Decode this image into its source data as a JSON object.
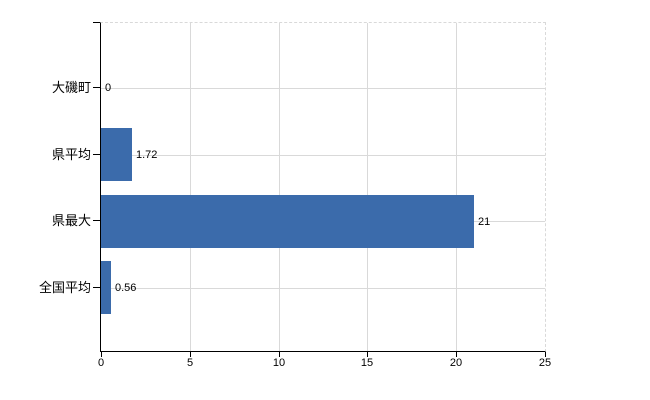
{
  "chart_data": {
    "type": "bar",
    "orientation": "horizontal",
    "categories": [
      "大磯町",
      "県平均",
      "県最大",
      "全国平均"
    ],
    "values": [
      0,
      1.72,
      21,
      0.56
    ],
    "value_labels": [
      "0",
      "1.72",
      "21",
      "0.56"
    ],
    "x_ticks": [
      0,
      5,
      10,
      15,
      20,
      25
    ],
    "x_tick_labels": [
      "0",
      "5",
      "10",
      "15",
      "20",
      "25"
    ],
    "xlim": [
      0,
      25
    ],
    "grid": true,
    "legend": false,
    "bar_color": "#3b6bab",
    "grid_color": "#d9d9d9",
    "axis_color": "#000000",
    "background_color": "#ffffff"
  }
}
